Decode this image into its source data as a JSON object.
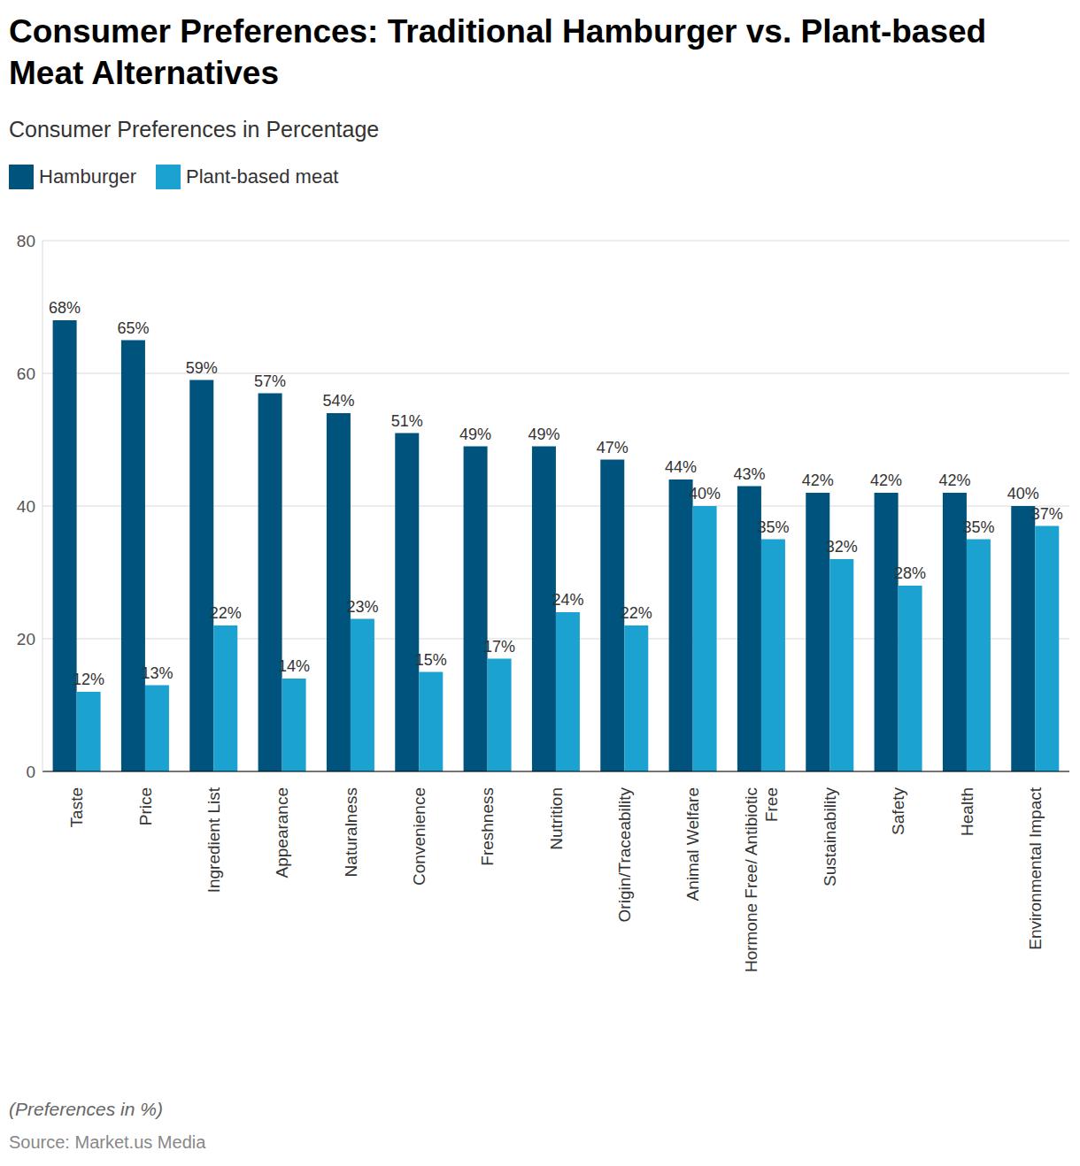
{
  "chart_data": {
    "type": "bar",
    "title": "Consumer Preferences: Traditional Hamburger vs. Plant-based Meat Alternatives",
    "subtitle": "Consumer Preferences in Percentage",
    "note": "(Preferences in %)",
    "source": "Source: Market.us Media",
    "categories": [
      "Taste",
      "Price",
      "Ingredient List",
      "Appearance",
      "Naturalness",
      "Convenience",
      "Freshness",
      "Nutrition",
      "Origin/Traceability",
      "Animal Welfare",
      "Hormone Free/ Antibiotic Free",
      "Sustainability",
      "Safety",
      "Health",
      "Environmental Impact"
    ],
    "series": [
      {
        "name": "Hamburger",
        "color": "#00537d",
        "values": [
          68,
          65,
          59,
          57,
          54,
          51,
          49,
          49,
          47,
          44,
          43,
          42,
          42,
          42,
          40
        ],
        "value_labels": [
          "68%",
          "65%",
          "59%",
          "57%",
          "54%",
          "51%",
          "49%",
          "49%",
          "47%",
          "44%",
          "43%",
          "42%",
          "42%",
          "42%",
          "40%"
        ]
      },
      {
        "name": "Plant-based meat",
        "color": "#1ba2d0",
        "values": [
          12,
          13,
          22,
          14,
          23,
          15,
          17,
          24,
          22,
          40,
          35,
          32,
          28,
          35,
          37
        ],
        "value_labels": [
          "12%",
          "13%",
          "22%",
          "14%",
          "23%",
          "15%",
          "17%",
          "24%",
          "22%",
          "40%",
          "35%",
          "32%",
          "28%",
          "35%",
          "37%"
        ]
      }
    ],
    "ylim": [
      0,
      80
    ],
    "yticks": [
      0,
      20,
      40,
      60,
      80
    ],
    "grid": true,
    "legend": "top-left",
    "data_labels": true
  }
}
